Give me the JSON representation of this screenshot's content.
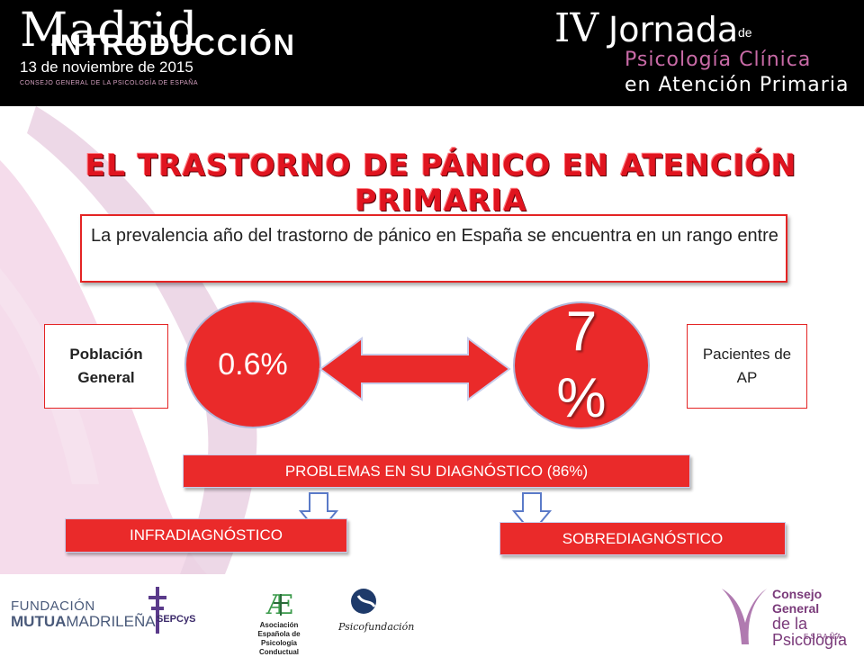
{
  "header": {
    "madrid": "Madrid",
    "section": "INTRODUCCIÓN",
    "date": "13 de noviembre de 2015",
    "consejo": "CONSEJO GENERAL DE LA PSICOLOGÍA DE ESPAÑA",
    "jornada_number": "IV",
    "jornada_word": "Jornada",
    "jornada_de": "de",
    "psicologia": "Psicología Clínica",
    "atencion": "en Atención Primaria"
  },
  "title": "EL TRASTORNO DE PÁNICO EN ATENCIÓN PRIMARIA",
  "prevalence_text": "La prevalencia año del trastorno de pánico en España se encuentra en un rango entre",
  "left_label": "Población General",
  "right_label": "Pacientes de AP",
  "left_value": "0.6%",
  "right_value_top": "7",
  "right_value_bottom": "%",
  "problems": "PROBLEMAS EN SU DIAGNÓSTICO (86%)",
  "infra": "INFRADIAGNÓSTICO",
  "sobre": "SOBREDIAGNÓSTICO",
  "logos": {
    "fundacion_line1": "FUNDACIÓN",
    "fundacion_mutua": "MUTUA",
    "fundacion_madrilena": "MADRILEÑA",
    "sepcys": "SEPCyS",
    "aepc": "Asociación Española de Psicología Conductual",
    "psicofundacion": "Psicofundación",
    "cgp_line1": "Consejo General",
    "cgp_line2": "de la Psicología",
    "cgp_line3": "ESPAÑA"
  },
  "colors": {
    "accent_red": "#ea2a2a",
    "title_red": "#e0141f",
    "header_bg": "#000000",
    "brand_purple": "#c86aa6"
  }
}
